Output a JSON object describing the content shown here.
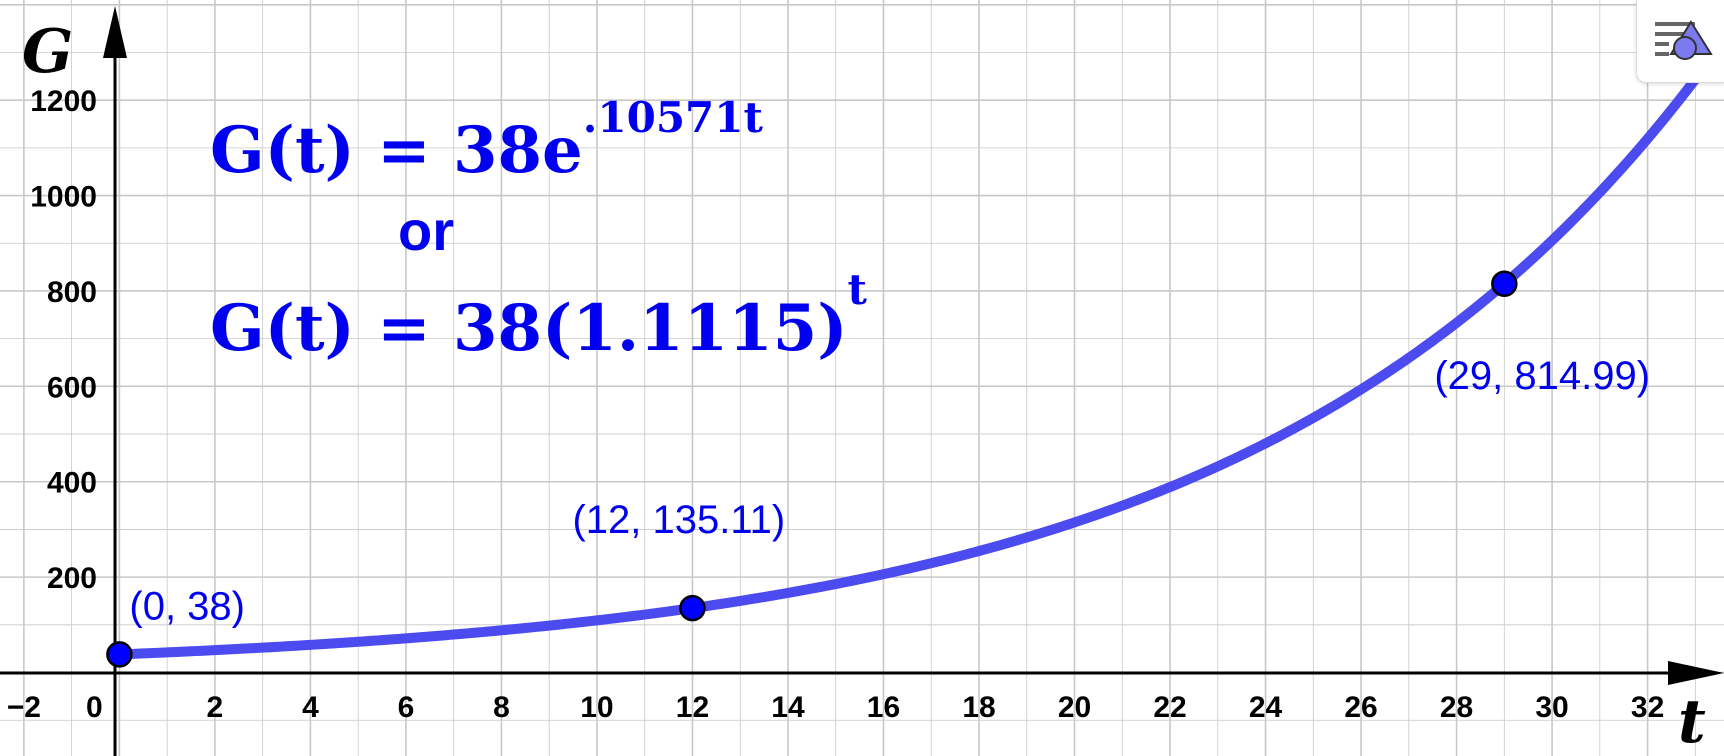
{
  "chart_data": {
    "type": "line",
    "xlabel": "t",
    "ylabel": "G",
    "xlim": [
      -2.5,
      33.6
    ],
    "ylim": [
      -175,
      1410
    ],
    "x_ticks": [
      -2,
      0,
      2,
      4,
      6,
      8,
      10,
      12,
      14,
      16,
      18,
      20,
      22,
      24,
      26,
      28,
      30,
      32
    ],
    "y_ticks": [
      200,
      400,
      600,
      800,
      1000,
      1200
    ],
    "grid": true,
    "series": [
      {
        "name": "G(t) = 38e^(.10571t)",
        "function": "38*exp(0.10571*t)",
        "x_range": [
          0,
          33.6
        ],
        "color": "#4b4bf0"
      }
    ],
    "points": [
      {
        "x": 0,
        "y": 38,
        "label": "(0, 38)"
      },
      {
        "x": 12,
        "y": 135.11,
        "label": "(12, 135.11)"
      },
      {
        "x": 29,
        "y": 814.99,
        "label": "(29, 814.99)"
      }
    ],
    "formulas": {
      "line1": {
        "lhs": "G(t) = 38e",
        "exp": ".10571t"
      },
      "or": "or",
      "line2": {
        "lhs": "G(t) = 38(1.1115)",
        "exp": "t"
      }
    }
  },
  "colors": {
    "curve": "#4b4bf0",
    "point": "#0000ff",
    "text": "#0000ee",
    "grid": "#c8c8c8"
  },
  "icons": {
    "style_button": "graphics-style-icon"
  }
}
